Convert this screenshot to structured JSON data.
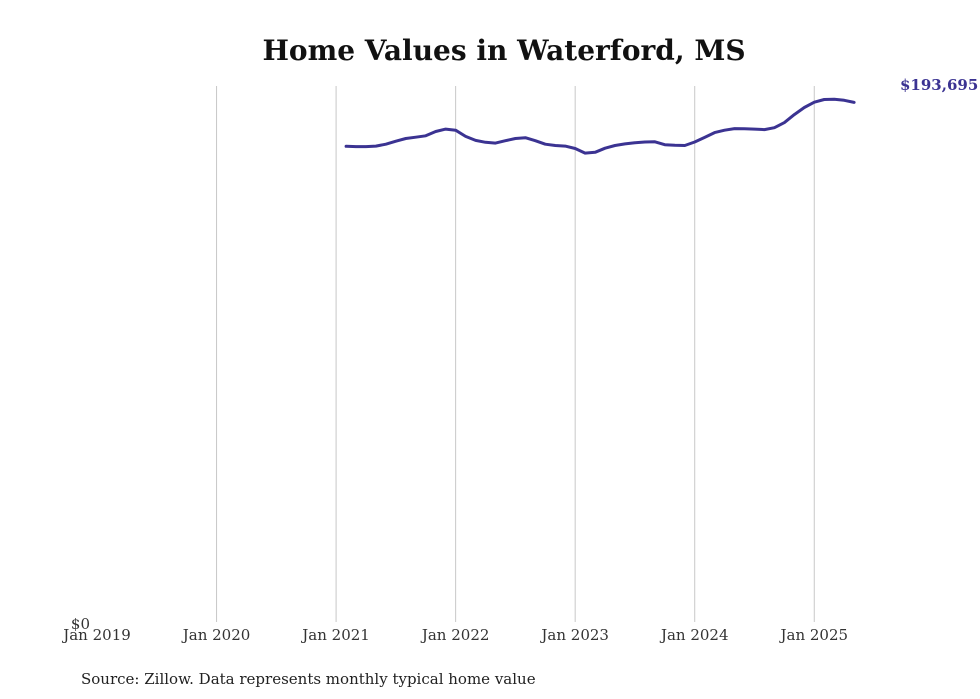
{
  "chart_data": {
    "type": "line",
    "title": "Home Values in Waterford, MS",
    "xlabel": "",
    "ylabel": "",
    "x_ticks": [
      "Jan 2019",
      "Jan 2020",
      "Jan 2021",
      "Jan 2022",
      "Jan 2023",
      "Jan 2024",
      "Jan 2025"
    ],
    "y_ticks": [
      "$0"
    ],
    "ylim": [
      0,
      199000
    ],
    "xlim": [
      "2019-01",
      "2025-08"
    ],
    "grid": "vertical",
    "legend": "none",
    "line_color": "#3b3392",
    "end_label": "$193,695",
    "source": "Source: Zillow. Data represents monthly typical home value",
    "series": [
      {
        "x": [
          "2021-02",
          "2021-03",
          "2021-04",
          "2021-05",
          "2021-06",
          "2021-07",
          "2021-08",
          "2021-09",
          "2021-10",
          "2021-11",
          "2021-12",
          "2022-01",
          "2022-02",
          "2022-03",
          "2022-04",
          "2022-05",
          "2022-06",
          "2022-07",
          "2022-08",
          "2022-09",
          "2022-10",
          "2022-11",
          "2022-12",
          "2023-01",
          "2023-02",
          "2023-03",
          "2023-04",
          "2023-05",
          "2023-06",
          "2023-07",
          "2023-08",
          "2023-09",
          "2023-10",
          "2023-11",
          "2023-12",
          "2024-01",
          "2024-02",
          "2024-03",
          "2024-04",
          "2024-05",
          "2024-06",
          "2024-07",
          "2024-08",
          "2024-09",
          "2024-10",
          "2024-11",
          "2024-12",
          "2025-01",
          "2025-02",
          "2025-03",
          "2025-04",
          "2025-05"
        ],
        "values": [
          176600,
          176500,
          176500,
          176700,
          177400,
          178500,
          179500,
          180000,
          180500,
          182100,
          183000,
          182600,
          180300,
          178800,
          178100,
          177800,
          178700,
          179500,
          179800,
          178700,
          177400,
          176900,
          176700,
          175800,
          174100,
          174400,
          175900,
          176900,
          177500,
          177900,
          178200,
          178300,
          177200,
          177000,
          176900,
          178200,
          179900,
          181700,
          182600,
          183200,
          183100,
          183000,
          182800,
          183500,
          185400,
          188400,
          191000,
          193000,
          194000,
          194100,
          193700,
          192900
        ]
      }
    ]
  }
}
